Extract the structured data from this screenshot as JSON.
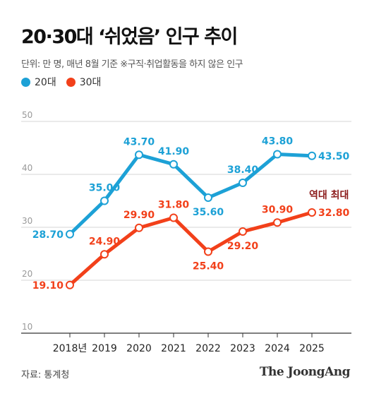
{
  "header": {
    "title": "20·30대 ‘쉬었음’ 인구 추이",
    "subtitle": "단위: 만 명, 매년 8월 기준   ※구직·취업활동을 하지 않은 인구"
  },
  "legend": [
    {
      "label": "20대",
      "color": "#1da1d6"
    },
    {
      "label": "30대",
      "color": "#f2401a"
    }
  ],
  "footer": {
    "source": "자료: 통계청",
    "brand": "The JoongAng"
  },
  "chart_data": {
    "type": "line",
    "categories": [
      "2018년",
      "2019",
      "2020",
      "2021",
      "2022",
      "2023",
      "2024",
      "2025"
    ],
    "series": [
      {
        "name": "20대",
        "color": "#1da1d6",
        "values": [
          28.7,
          35.0,
          43.7,
          41.9,
          35.6,
          38.4,
          43.8,
          43.5
        ],
        "labels": [
          "28.70",
          "35.00",
          "43.70",
          "41.90",
          "35.60",
          "38.40",
          "43.80",
          "43.50"
        ]
      },
      {
        "name": "30대",
        "color": "#f2401a",
        "values": [
          19.1,
          24.9,
          29.9,
          31.8,
          25.4,
          29.2,
          30.9,
          32.8
        ],
        "labels": [
          "19.10",
          "24.90",
          "29.90",
          "31.80",
          "25.40",
          "29.20",
          "30.90",
          "32.80"
        ]
      }
    ],
    "ylim": [
      10,
      50
    ],
    "yticks": [
      10,
      20,
      30,
      40,
      50
    ],
    "grid": true,
    "annotation": {
      "text": "역대 최대",
      "color": "#8b1a1a"
    }
  }
}
